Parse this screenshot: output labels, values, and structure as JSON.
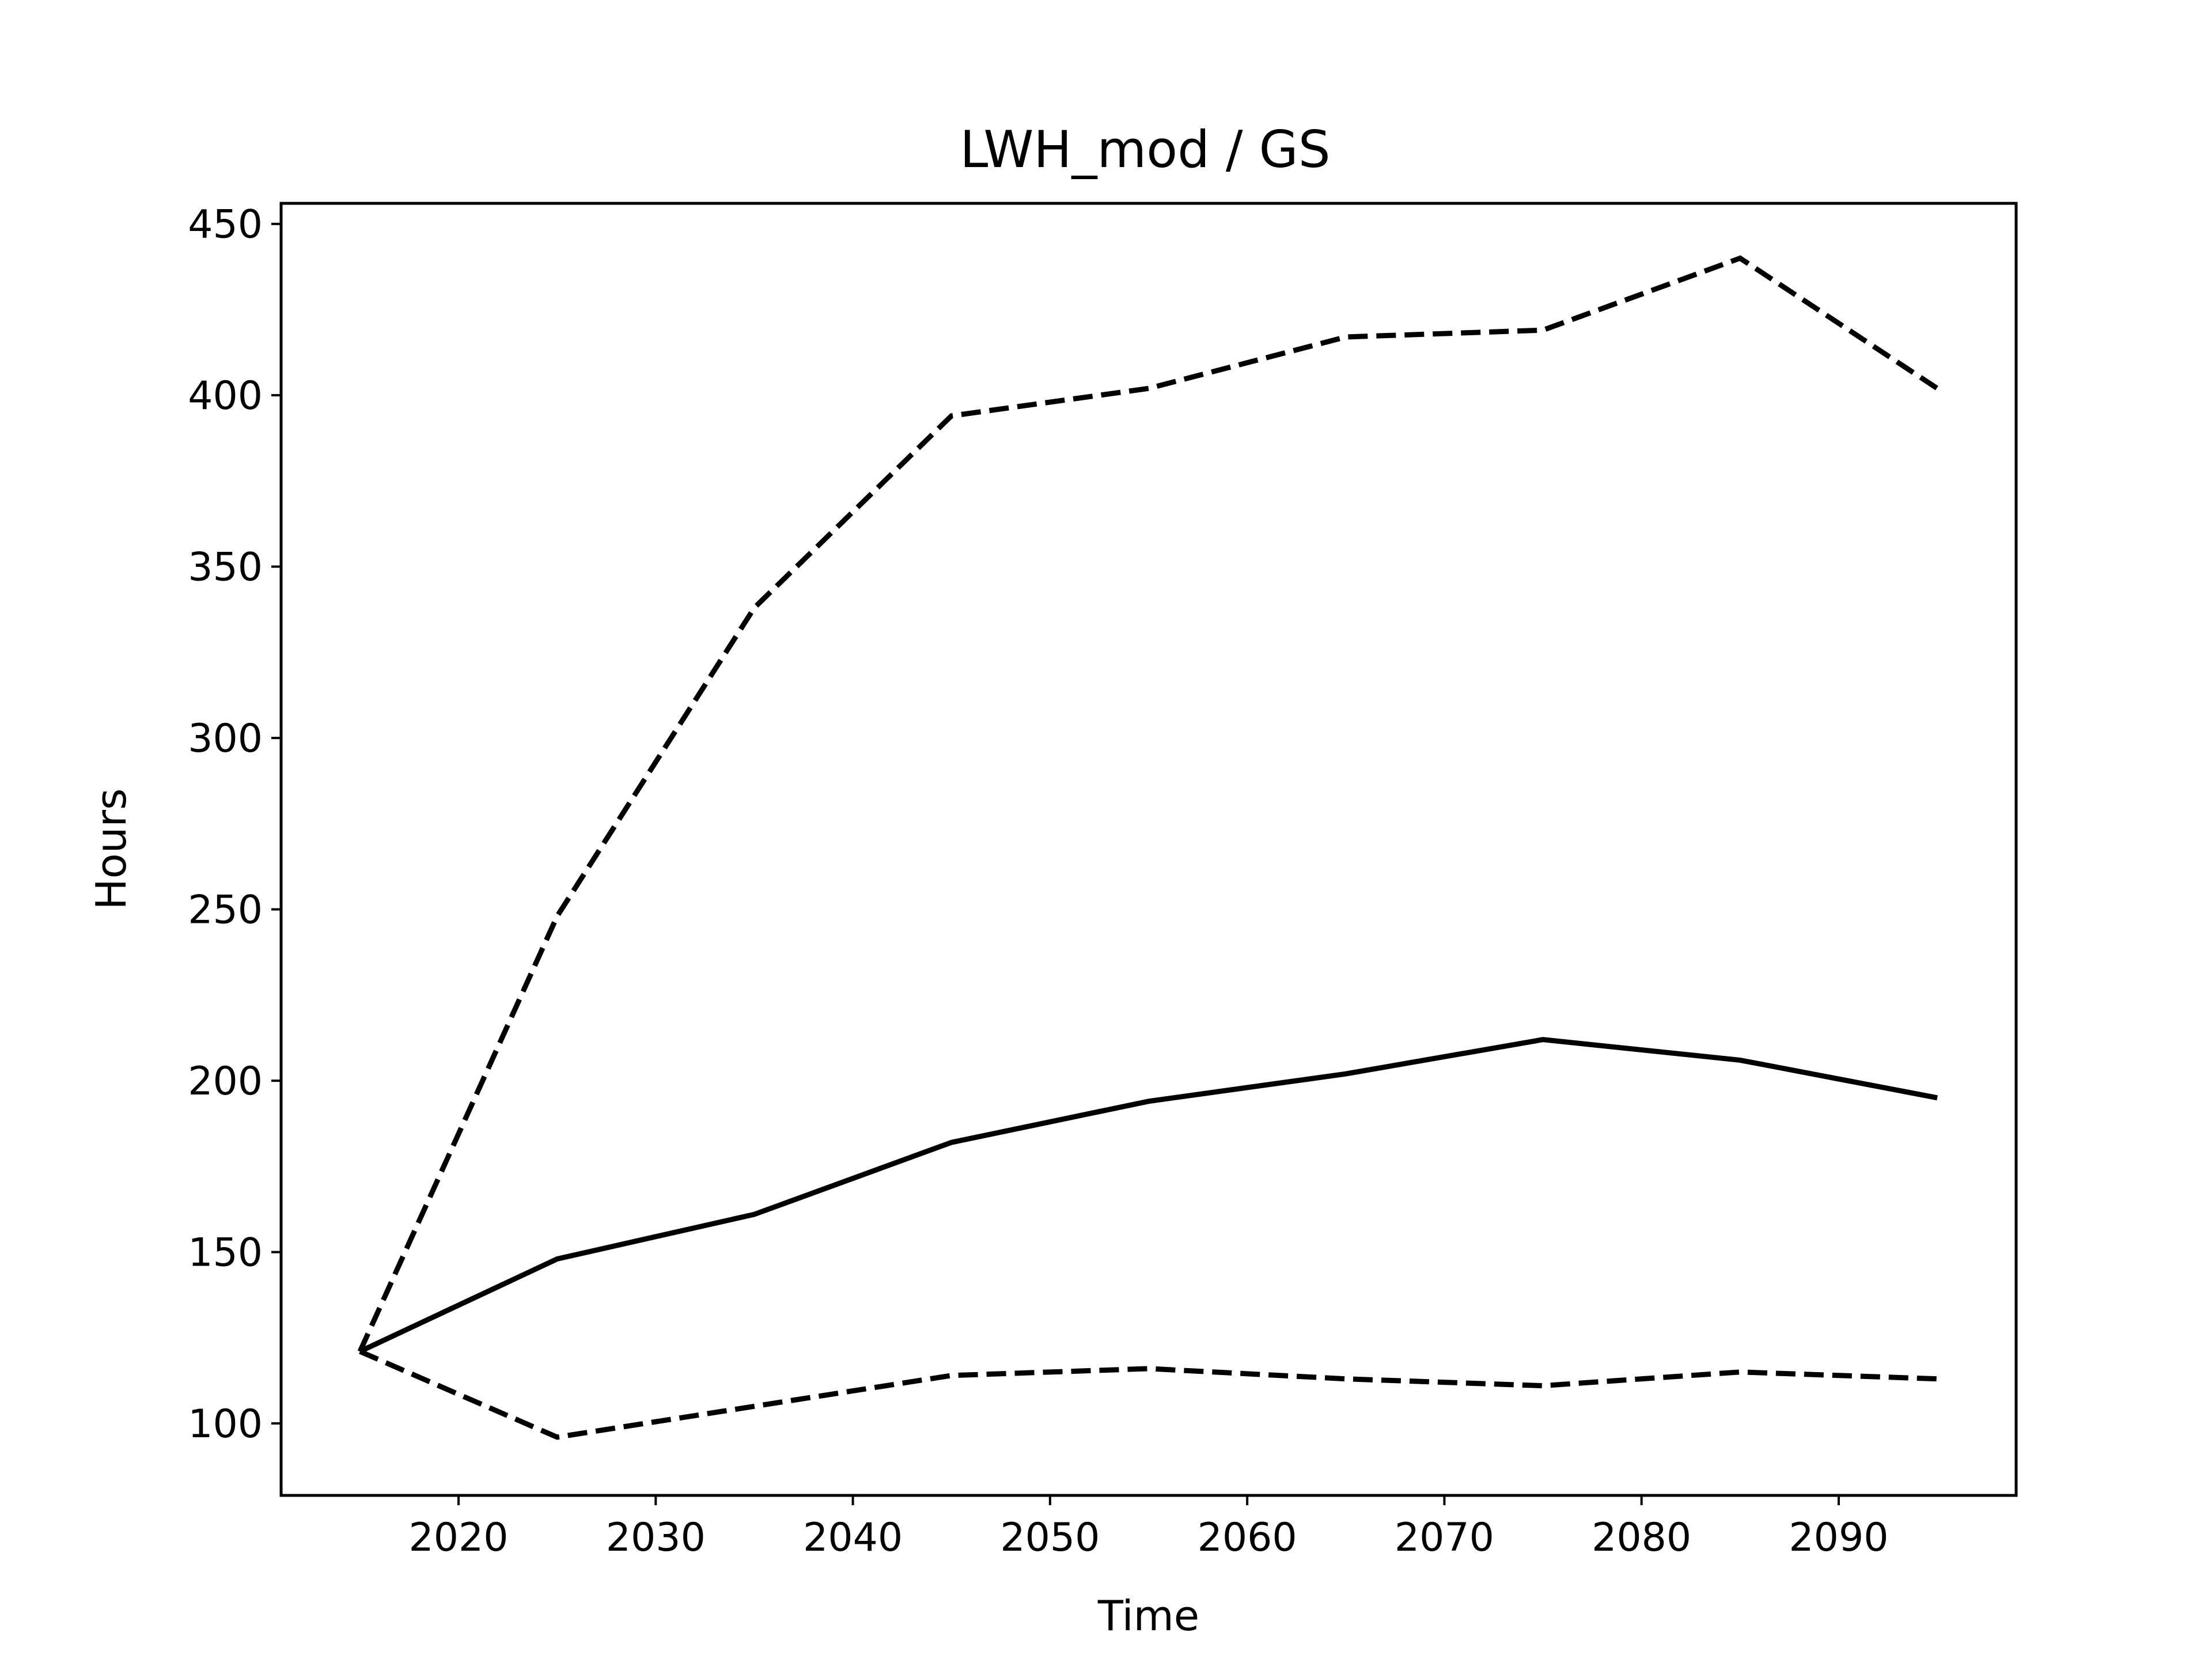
{
  "chart_data": {
    "type": "line",
    "title": "LWH_mod / GS",
    "xlabel": "Time",
    "ylabel": "Hours",
    "xlim": [
      2011,
      2099
    ],
    "ylim": [
      79,
      456
    ],
    "xticks": [
      2020,
      2030,
      2040,
      2050,
      2060,
      2070,
      2080,
      2090
    ],
    "yticks": [
      100,
      150,
      200,
      250,
      300,
      350,
      400,
      450
    ],
    "grid": false,
    "legend": "none",
    "x": [
      2015,
      2025,
      2035,
      2045,
      2055,
      2065,
      2075,
      2085,
      2095
    ],
    "series": [
      {
        "style": "dashed",
        "color": "#000000",
        "values": [
          121,
          248,
          338,
          394,
          402,
          417,
          419,
          440,
          402
        ]
      },
      {
        "style": "solid",
        "color": "#000000",
        "values": [
          121,
          148,
          161,
          182,
          194,
          202,
          212,
          206,
          195
        ]
      },
      {
        "style": "dashed",
        "color": "#000000",
        "values": [
          121,
          96,
          105,
          114,
          116,
          113,
          111,
          115,
          113
        ]
      }
    ]
  }
}
